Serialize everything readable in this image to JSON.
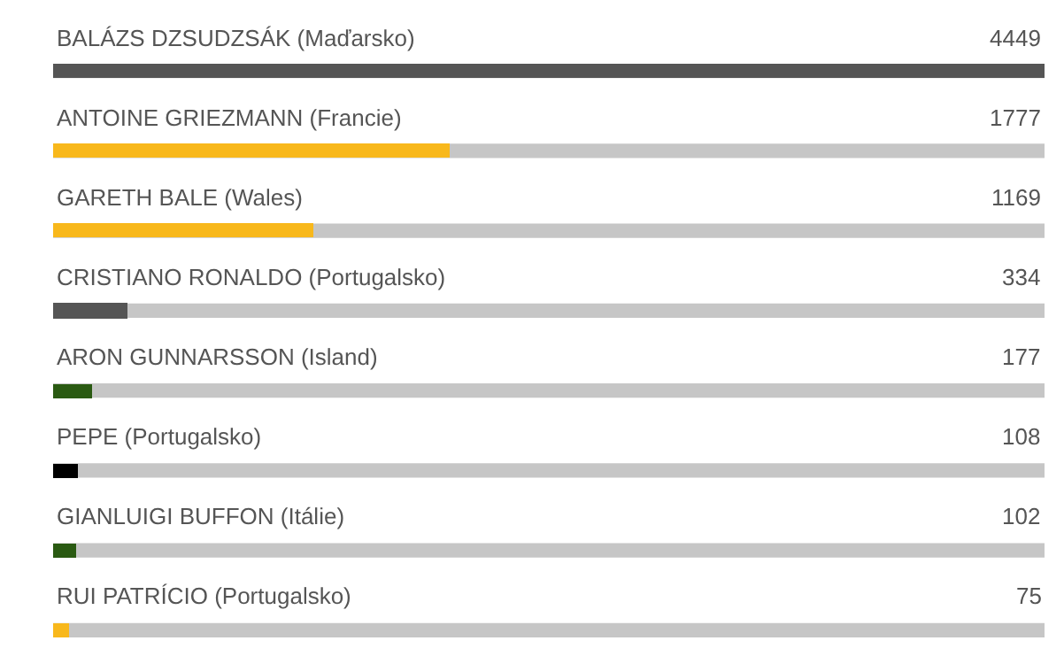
{
  "chart_data": {
    "type": "bar",
    "orientation": "horizontal",
    "categories": [
      "BALÁZS DZSUDZSÁK (Maďarsko)",
      "ANTOINE GRIEZMANN (Francie)",
      "GARETH BALE (Wales)",
      "CRISTIANO RONALDO (Portugalsko)",
      "ARON GUNNARSSON (Island)",
      "PEPE (Portugalsko)",
      "GIANLUIGI BUFFON (Itálie)",
      "RUI PATRÍCIO (Portugalsko)"
    ],
    "values": [
      4449,
      1777,
      1169,
      334,
      177,
      108,
      102,
      75
    ],
    "colors": [
      "#555555",
      "#f8b81c",
      "#f8b81c",
      "#555555",
      "#2a5a12",
      "#000000",
      "#2a5a12",
      "#f8b81c"
    ],
    "data_labels": true,
    "tick_labels": false
  }
}
